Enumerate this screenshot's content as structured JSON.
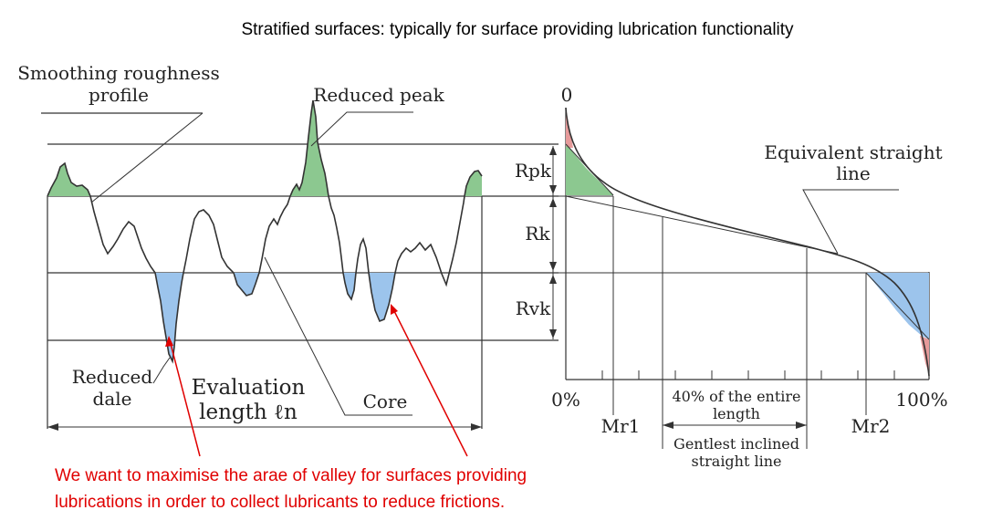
{
  "title": "Stratified surfaces: typically for surface providing lubrication functionality",
  "left_panel": {
    "smoothing_label_1": "Smoothing roughness",
    "smoothing_label_2": "profile",
    "reduced_peak": "Reduced peak",
    "reduced_dale_1": "Reduced",
    "reduced_dale_2": "dale",
    "evaluation_1": "Evaluation",
    "evaluation_2": "length ℓn",
    "core": "Core"
  },
  "right_panel": {
    "zero": "0",
    "rpk": "Rpk",
    "rk": "Rk",
    "rvk": "Rvk",
    "pct0": "0%",
    "pct100": "100%",
    "mr1": "Mr1",
    "mr2": "Mr2",
    "equiv_1": "Equivalent straight",
    "equiv_2": "line",
    "forty_1": "40% of the entire",
    "forty_2": "length",
    "gentlest_1": "Gentlest inclined",
    "gentlest_2": "straight line"
  },
  "annotation": {
    "line1": "We want to maximise the arae of valley for surfaces providing",
    "line2": "lubrications in order to collect lubricants to reduce frictions."
  },
  "colors": {
    "peak_fill": "#8cc890",
    "dale_fill": "#9cc4ec",
    "red_fill": "#e69a9a",
    "annotation": "#e00000"
  }
}
